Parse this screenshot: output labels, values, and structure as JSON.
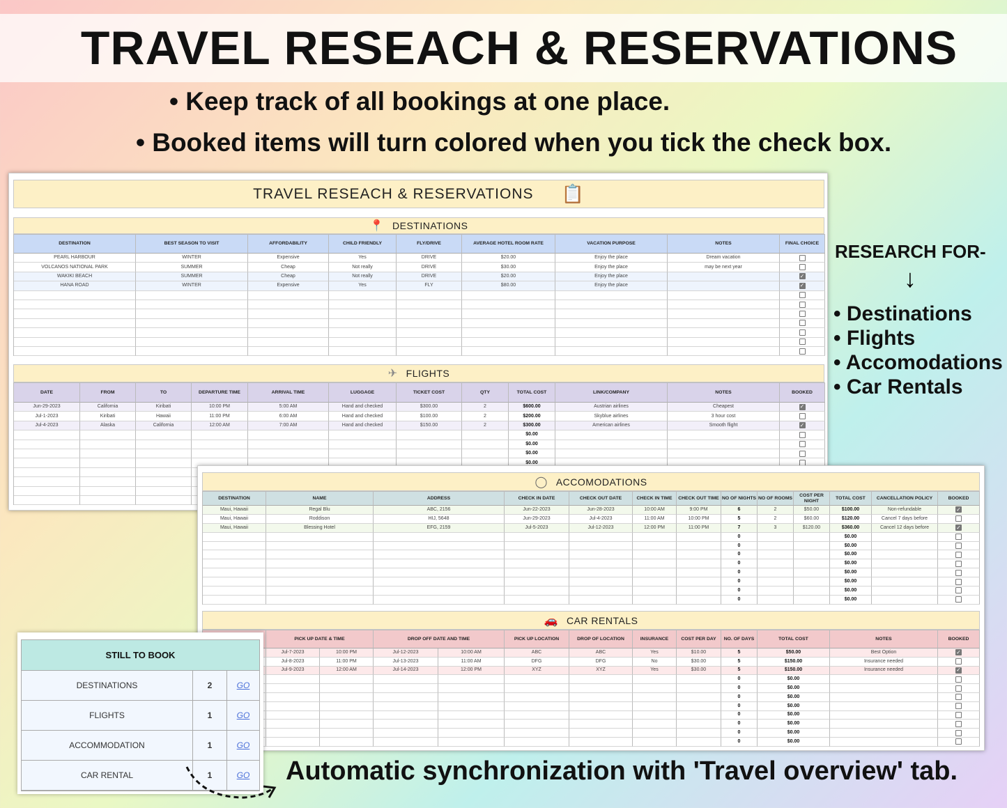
{
  "header": {
    "title": "TRAVEL RESEACH & RESERVATIONS",
    "bullets": [
      "• Keep track of all bookings at one place.",
      "• Booked items will turn colored when you tick the check box."
    ]
  },
  "side": {
    "heading": "RESEARCH FOR-",
    "items": [
      "• Destinations",
      "• Flights",
      "• Accomodations",
      "• Car Rentals"
    ]
  },
  "footer": {
    "text": "Automatic synchronization with 'Travel overview' tab."
  },
  "sheet": {
    "title": "TRAVEL RESEACH & RESERVATIONS",
    "title_icon": "clipboard-search-icon"
  },
  "colors": {
    "destinations": "#c9daf6",
    "flights": "#d9d3ea",
    "accommodations": "#cfe0e2",
    "car_rentals": "#f2c9cb",
    "bar": "#fdf0c6",
    "still_to_book": "#bde9e3"
  },
  "destinations": {
    "title": "DESTINATIONS",
    "icon": "map-pin-icon",
    "columns": [
      "DESTINATION",
      "BEST SEASON TO VISIT",
      "AFFORDABILITY",
      "CHILD FRIENDLY",
      "FLY/DRIVE",
      "AVERAGE HOTEL ROOM RATE",
      "VACATION PURPOSE",
      "NOTES",
      "FINAL CHOICE"
    ],
    "rows": [
      {
        "cells": [
          "PEARL HARBOUR",
          "WINTER",
          "Expensive",
          "Yes",
          "DRIVE",
          "$20.00",
          "Enjoy the place",
          "Dream vacation"
        ],
        "checked": false
      },
      {
        "cells": [
          "VOLCANOS NATIONAL PARK",
          "SUMMER",
          "Cheap",
          "Not really",
          "DRIVE",
          "$30.00",
          "Enjoy the place",
          "may be next year"
        ],
        "checked": false
      },
      {
        "cells": [
          "WAKIKI BEACH",
          "SUMMER",
          "Cheap",
          "Not really",
          "DRIVE",
          "$20.00",
          "Enjoy the place",
          ""
        ],
        "checked": true
      },
      {
        "cells": [
          "HANA ROAD",
          "WINTER",
          "Expensive",
          "Yes",
          "FLY",
          "$80.00",
          "Enjoy the place",
          ""
        ],
        "checked": true
      }
    ]
  },
  "flights": {
    "title": "FLIGHTS",
    "icon": "airplane-icon",
    "columns": [
      "DATE",
      "FROM",
      "TO",
      "DEPARTURE TIME",
      "ARRIVAL TIME",
      "LUGGAGE",
      "TICKET COST",
      "QTY",
      "TOTAL COST",
      "LINK/COMPANY",
      "NOTES",
      "BOOKED"
    ],
    "rows": [
      {
        "cells": [
          "Jun-29-2023",
          "California",
          "Kiribati",
          "10:00 PM",
          "5:00 AM",
          "Hand and checked",
          "$300.00",
          "2",
          "$600.00",
          "Austrian airlines",
          "Cheapest"
        ],
        "checked": true
      },
      {
        "cells": [
          "Jul-1-2023",
          "Kiribati",
          "Hawaii",
          "11:00 PM",
          "6:00 AM",
          "Hand and checked",
          "$100.00",
          "2",
          "$200.00",
          "Skyblue airlines",
          "3 hour cost"
        ],
        "checked": false
      },
      {
        "cells": [
          "Jul-4-2023",
          "Alaska",
          "California",
          "12:00 AM",
          "7:00 AM",
          "Hand and checked",
          "$150.00",
          "2",
          "$300.00",
          "American airlines",
          "Smooth flight"
        ],
        "checked": true
      },
      {
        "cells": [
          "",
          "",
          "",
          "",
          "",
          "",
          "",
          "",
          "$0.00",
          "",
          ""
        ],
        "checked": false
      },
      {
        "cells": [
          "",
          "",
          "",
          "",
          "",
          "",
          "",
          "",
          "$0.00",
          "",
          ""
        ],
        "checked": false
      },
      {
        "cells": [
          "",
          "",
          "",
          "",
          "",
          "",
          "",
          "",
          "$0.00",
          "",
          ""
        ],
        "checked": false
      },
      {
        "cells": [
          "",
          "",
          "",
          "",
          "",
          "",
          "",
          "",
          "$0.00",
          "",
          ""
        ],
        "checked": false
      }
    ]
  },
  "accommodations": {
    "title": "ACCOMODATIONS",
    "icon": "hotel-badge-icon",
    "columns": [
      "DESTINATION",
      "NAME",
      "ADDRESS",
      "CHECK IN DATE",
      "CHECK OUT DATE",
      "CHECK IN TIME",
      "CHECK OUT TIME",
      "NO OF NIGHTS",
      "NO OF ROOMS",
      "COST PER NIGHT",
      "TOTAL COST",
      "CANCELLATION POLICY",
      "BOOKED"
    ],
    "rows": [
      {
        "cells": [
          "Maui, Hawaii",
          "Regal Blu",
          "ABC, 2156",
          "Jun-22-2023",
          "Jun-28-2023",
          "10:00 AM",
          "9:00 PM",
          "6",
          "2",
          "$50.00",
          "$100.00",
          "Non-refundable"
        ],
        "checked": true
      },
      {
        "cells": [
          "Maui, Hawaii",
          "Roddison",
          "HIJ, 5648",
          "Jun-29-2023",
          "Jul-4-2023",
          "11:00 AM",
          "10:00 PM",
          "5",
          "2",
          "$60.00",
          "$120.00",
          "Cancel 7 days before"
        ],
        "checked": false
      },
      {
        "cells": [
          "Maui, Hawaii",
          "Blessing Hotel",
          "EFG, 2159",
          "Jul-5-2023",
          "Jul-12-2023",
          "12:00 PM",
          "11:00 PM",
          "7",
          "3",
          "$120.00",
          "$360.00",
          "Cancel 12 days before"
        ],
        "checked": true
      },
      {
        "cells": [
          "",
          "",
          "",
          "",
          "",
          "",
          "",
          "0",
          "",
          "",
          "$0.00",
          ""
        ],
        "checked": false
      },
      {
        "cells": [
          "",
          "",
          "",
          "",
          "",
          "",
          "",
          "0",
          "",
          "",
          "$0.00",
          ""
        ],
        "checked": false
      },
      {
        "cells": [
          "",
          "",
          "",
          "",
          "",
          "",
          "",
          "0",
          "",
          "",
          "$0.00",
          ""
        ],
        "checked": false
      },
      {
        "cells": [
          "",
          "",
          "",
          "",
          "",
          "",
          "",
          "0",
          "",
          "",
          "$0.00",
          ""
        ],
        "checked": false
      },
      {
        "cells": [
          "",
          "",
          "",
          "",
          "",
          "",
          "",
          "0",
          "",
          "",
          "$0.00",
          ""
        ],
        "checked": false
      },
      {
        "cells": [
          "",
          "",
          "",
          "",
          "",
          "",
          "",
          "0",
          "",
          "",
          "$0.00",
          ""
        ],
        "checked": false
      },
      {
        "cells": [
          "",
          "",
          "",
          "",
          "",
          "",
          "",
          "0",
          "",
          "",
          "$0.00",
          ""
        ],
        "checked": false
      },
      {
        "cells": [
          "",
          "",
          "",
          "",
          "",
          "",
          "",
          "0",
          "",
          "",
          "$0.00",
          ""
        ],
        "checked": false
      }
    ]
  },
  "car_rentals": {
    "title": "CAR RENTALS",
    "icon": "car-icon",
    "columns": [
      "",
      "PICK UP DATE & TIME",
      "DROP OFF DATE AND TIME",
      "PICK UP LOCATION",
      "DROP OF LOCATION",
      "INSURANCE",
      "COST PER DAY",
      "NO. OF DAYS",
      "TOTAL COST",
      "NOTES",
      "BOOKED"
    ],
    "rows": [
      {
        "cells": [
          "",
          "Jul-7-2023",
          "10:00 PM",
          "Jul-12-2023",
          "10:00 AM",
          "ABC",
          "ABC",
          "Yes",
          "$10.00",
          "5",
          "$50.00",
          "Best Option"
        ],
        "checked": true
      },
      {
        "cells": [
          "",
          "Jul-8-2023",
          "11:00 PM",
          "Jul-13-2023",
          "11:00 AM",
          "DFG",
          "DFG",
          "No",
          "$30.00",
          "5",
          "$150.00",
          "Insurance needed"
        ],
        "checked": false
      },
      {
        "cells": [
          "",
          "Jul-9-2023",
          "12:00 AM",
          "Jul-14-2023",
          "12:00 PM",
          "XYZ",
          "XYZ",
          "Yes",
          "$30.00",
          "5",
          "$150.00",
          "Insurance needed"
        ],
        "checked": true
      },
      {
        "cells": [
          "",
          "",
          "",
          "",
          "",
          "",
          "",
          "",
          "",
          "0",
          "$0.00",
          ""
        ],
        "checked": false
      },
      {
        "cells": [
          "",
          "",
          "",
          "",
          "",
          "",
          "",
          "",
          "",
          "0",
          "$0.00",
          ""
        ],
        "checked": false
      },
      {
        "cells": [
          "",
          "",
          "",
          "",
          "",
          "",
          "",
          "",
          "",
          "0",
          "$0.00",
          ""
        ],
        "checked": false
      },
      {
        "cells": [
          "",
          "",
          "",
          "",
          "",
          "",
          "",
          "",
          "",
          "0",
          "$0.00",
          ""
        ],
        "checked": false
      },
      {
        "cells": [
          "",
          "",
          "",
          "",
          "",
          "",
          "",
          "",
          "",
          "0",
          "$0.00",
          ""
        ],
        "checked": false
      },
      {
        "cells": [
          "",
          "",
          "",
          "",
          "",
          "",
          "",
          "",
          "",
          "0",
          "$0.00",
          ""
        ],
        "checked": false
      },
      {
        "cells": [
          "",
          "",
          "",
          "",
          "",
          "",
          "",
          "",
          "",
          "0",
          "$0.00",
          ""
        ],
        "checked": false
      },
      {
        "cells": [
          "",
          "",
          "",
          "",
          "",
          "",
          "",
          "",
          "",
          "0",
          "$0.00",
          ""
        ],
        "checked": false
      }
    ]
  },
  "still_to_book": {
    "title": "STILL TO BOOK",
    "items": [
      {
        "label": "DESTINATIONS",
        "count": "2",
        "link": "GO"
      },
      {
        "label": "FLIGHTS",
        "count": "1",
        "link": "GO"
      },
      {
        "label": "ACCOMMODATION",
        "count": "1",
        "link": "GO"
      },
      {
        "label": "CAR RENTAL",
        "count": "1",
        "link": "GO"
      }
    ]
  }
}
